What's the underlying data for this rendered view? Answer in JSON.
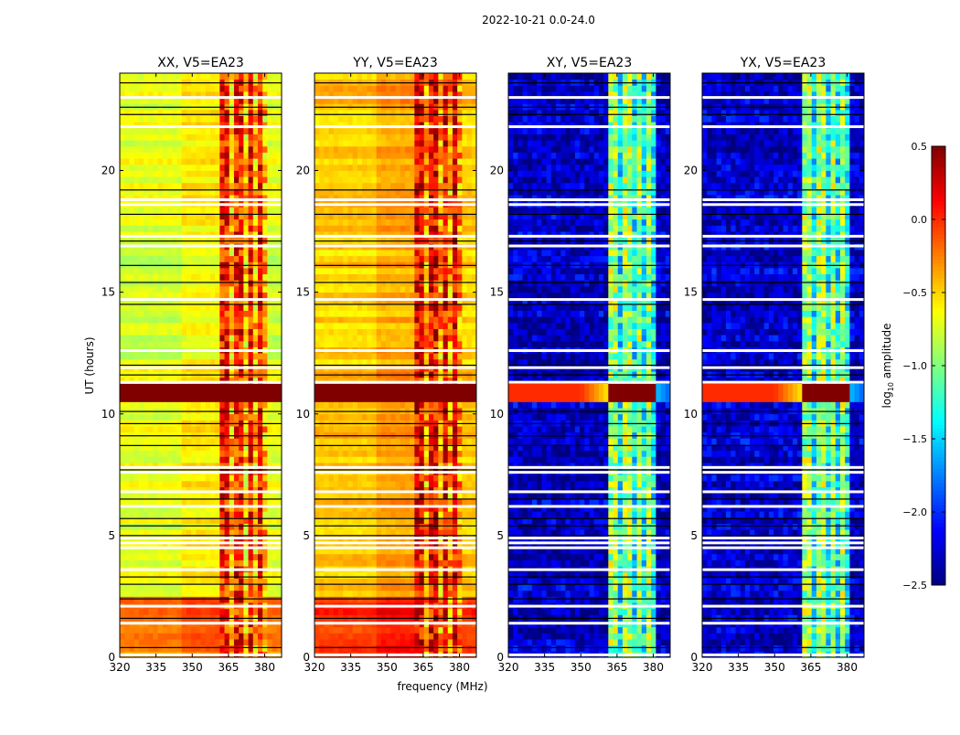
{
  "chart_data": {
    "type": "heatmap",
    "suptitle": "2022-10-21 0.0-24.0",
    "xlabel": "frequency (MHz)",
    "ylabel": "UT (hours)",
    "xlim": [
      320,
      387
    ],
    "ylim": [
      0,
      24
    ],
    "xticks": [
      320,
      335,
      350,
      365,
      380
    ],
    "yticks": [
      0,
      5,
      10,
      15,
      20
    ],
    "colorbar": {
      "label": "log10 amplitude",
      "label_main": "log",
      "label_sub": "10",
      "label_rest": " amplitude",
      "range": [
        -2.5,
        0.5
      ],
      "ticks": [
        "0.5",
        "0.0",
        "−0.5",
        "−1.0",
        "−1.5",
        "−2.0",
        "−2.5"
      ],
      "tick_values": [
        0.5,
        0.0,
        -0.5,
        -1.0,
        -1.5,
        -2.0,
        -2.5
      ],
      "colormap": "jet"
    },
    "panels": [
      {
        "title": "XX, V5=EA23",
        "base_level": -0.7,
        "band_level": 0.05,
        "strong_level": 0.5,
        "strong_band_level": 0.5,
        "cross": false
      },
      {
        "title": "YY, V5=EA23",
        "base_level": -0.45,
        "band_level": 0.15,
        "strong_level": 0.5,
        "strong_band_level": 0.5,
        "cross": false
      },
      {
        "title": "XY, V5=EA23",
        "base_level": -2.3,
        "band_level": -0.9,
        "strong_level": 0.0,
        "strong_band_level": 0.5,
        "cross": true
      },
      {
        "title": "YX, V5=EA23",
        "base_level": -2.3,
        "band_level": -0.9,
        "strong_level": 0.0,
        "strong_band_level": 0.5,
        "cross": true
      }
    ],
    "rfi_band_mhz": [
      362,
      381
    ],
    "band_gaps_mhz": [
      367,
      371.5,
      376,
      380
    ],
    "strong_hours": [
      10.6,
      11.2
    ],
    "flagged_white_hours": [
      23.0,
      21.8,
      18.8,
      18.6,
      17.3,
      16.9,
      14.7,
      12.6,
      11.9,
      11.3,
      7.8,
      7.6,
      6.8,
      6.2,
      4.9,
      4.7,
      4.5,
      3.6,
      2.1,
      1.4,
      0.1
    ],
    "black_line_hours": [
      23.6,
      22.6,
      22.3,
      19.2,
      18.2,
      17.1,
      16.1,
      15.4,
      14.5,
      12.0,
      11.6,
      10.1,
      9.6,
      9.1,
      8.7,
      7.7,
      6.5,
      5.7,
      5.4,
      5.0,
      3.3,
      3.0,
      2.4,
      1.6,
      0.4
    ]
  }
}
